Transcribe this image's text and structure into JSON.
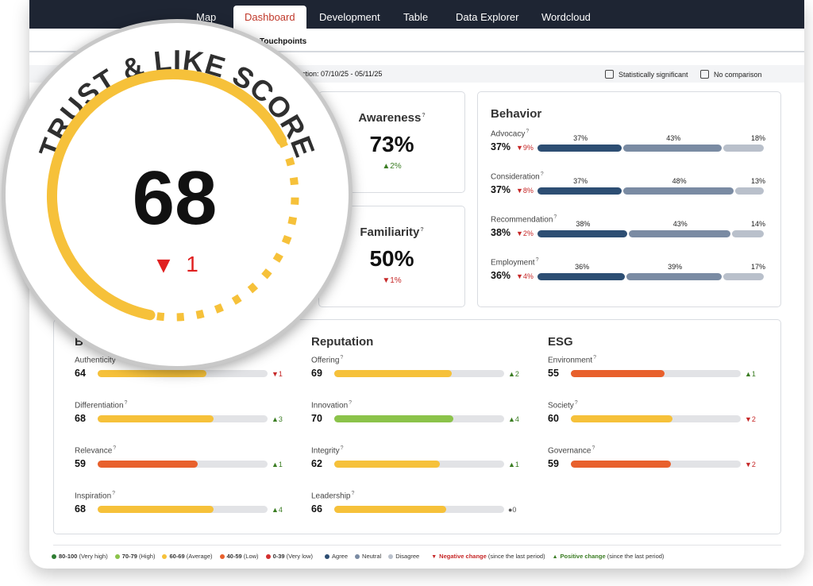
{
  "nav": {
    "tabs": [
      {
        "label": "Map"
      },
      {
        "label": "Dashboard"
      },
      {
        "label": "Development"
      },
      {
        "label": "Table"
      },
      {
        "label": "Data Explorer"
      },
      {
        "label": "Wordcloud"
      }
    ],
    "active_tab": "Dashboard",
    "subtab": "Touchpoints"
  },
  "filter": {
    "collection": "llection: 07/10/25 - 05/11/25",
    "stat_sig_label": "Statistically significant",
    "no_comparison_label": "No comparison"
  },
  "trust": {
    "title": "TRUST & LIKE SCORE",
    "score": "68",
    "change": "1",
    "change_direction": "down"
  },
  "kpis": {
    "awareness": {
      "label": "Awareness",
      "value": "73%",
      "change": "▲2%",
      "direction": "up"
    },
    "familiarity": {
      "label": "Familiarity",
      "value": "50%",
      "change": "▼1%",
      "direction": "down"
    }
  },
  "behavior": {
    "title": "Behavior",
    "rows": [
      {
        "label": "Advocacy",
        "value": "37%",
        "change": "▼9%",
        "agree": 37,
        "neutral": 43,
        "disagree": 18,
        "agree_label": "37%",
        "neutral_label": "43%",
        "disagree_label": "18%"
      },
      {
        "label": "Consideration",
        "value": "37%",
        "change": "▼8%",
        "agree": 37,
        "neutral": 48,
        "disagree": 13,
        "agree_label": "37%",
        "neutral_label": "48%",
        "disagree_label": "13%"
      },
      {
        "label": "Recommendation",
        "value": "38%",
        "change": "▼2%",
        "agree": 38,
        "neutral": 43,
        "disagree": 14,
        "agree_label": "38%",
        "neutral_label": "43%",
        "disagree_label": "14%"
      },
      {
        "label": "Employment",
        "value": "36%",
        "change": "▼4%",
        "agree": 36,
        "neutral": 39,
        "disagree": 17,
        "agree_label": "36%",
        "neutral_label": "39%",
        "disagree_label": "17%"
      }
    ]
  },
  "groups": {
    "brand": {
      "title": "B",
      "items": [
        {
          "label": "Authenticity",
          "value": "64",
          "score": 64,
          "change": "▼1",
          "dir": "down"
        },
        {
          "label": "Differentiation",
          "value": "68",
          "score": 68,
          "change": "▲3",
          "dir": "up"
        },
        {
          "label": "Relevance",
          "value": "59",
          "score": 59,
          "change": "▲1",
          "dir": "up"
        },
        {
          "label": "Inspiration",
          "value": "68",
          "score": 68,
          "change": "▲4",
          "dir": "up"
        }
      ]
    },
    "reputation": {
      "title": "Reputation",
      "items": [
        {
          "label": "Offering",
          "value": "69",
          "score": 69,
          "change": "▲2",
          "dir": "up"
        },
        {
          "label": "Innovation",
          "value": "70",
          "score": 70,
          "change": "▲4",
          "dir": "up"
        },
        {
          "label": "Integrity",
          "value": "62",
          "score": 62,
          "change": "▲1",
          "dir": "up"
        },
        {
          "label": "Leadership",
          "value": "66",
          "score": 66,
          "change": "●0",
          "dir": "neutral"
        }
      ]
    },
    "esg": {
      "title": "ESG",
      "items": [
        {
          "label": "Environment",
          "value": "55",
          "score": 55,
          "change": "▲1",
          "dir": "up"
        },
        {
          "label": "Society",
          "value": "60",
          "score": 60,
          "change": "▼2",
          "dir": "down"
        },
        {
          "label": "Governance",
          "value": "59",
          "score": 59,
          "change": "▼2",
          "dir": "down"
        }
      ]
    }
  },
  "legend": {
    "very_high": "80-100",
    "very_high_note": "(Very high)",
    "high": "70-79",
    "high_note": "(High)",
    "average": "60-69",
    "average_note": "(Average)",
    "low": "40-59",
    "low_note": "(Low)",
    "very_low": "0-39",
    "very_low_note": "(Very low)",
    "agree": "Agree",
    "neutral": "Neutral",
    "disagree": "Disagree",
    "neg_change": "Negative change",
    "neg_note": "(since the last period)",
    "pos_change": "Positive change",
    "pos_note": "(since the last period)"
  },
  "colors": {
    "very_high": "#2e7d32",
    "high": "#8bc34a",
    "average": "#f6c13a",
    "low": "#e8602c",
    "very_low": "#d32f2f",
    "agree": "#2d4e73",
    "neutral": "#7a8ba3",
    "disagree": "#b9c0cb",
    "gauge": "#f6c13a",
    "nav_bg": "#1e2533",
    "active_tab_text": "#c0392b"
  }
}
